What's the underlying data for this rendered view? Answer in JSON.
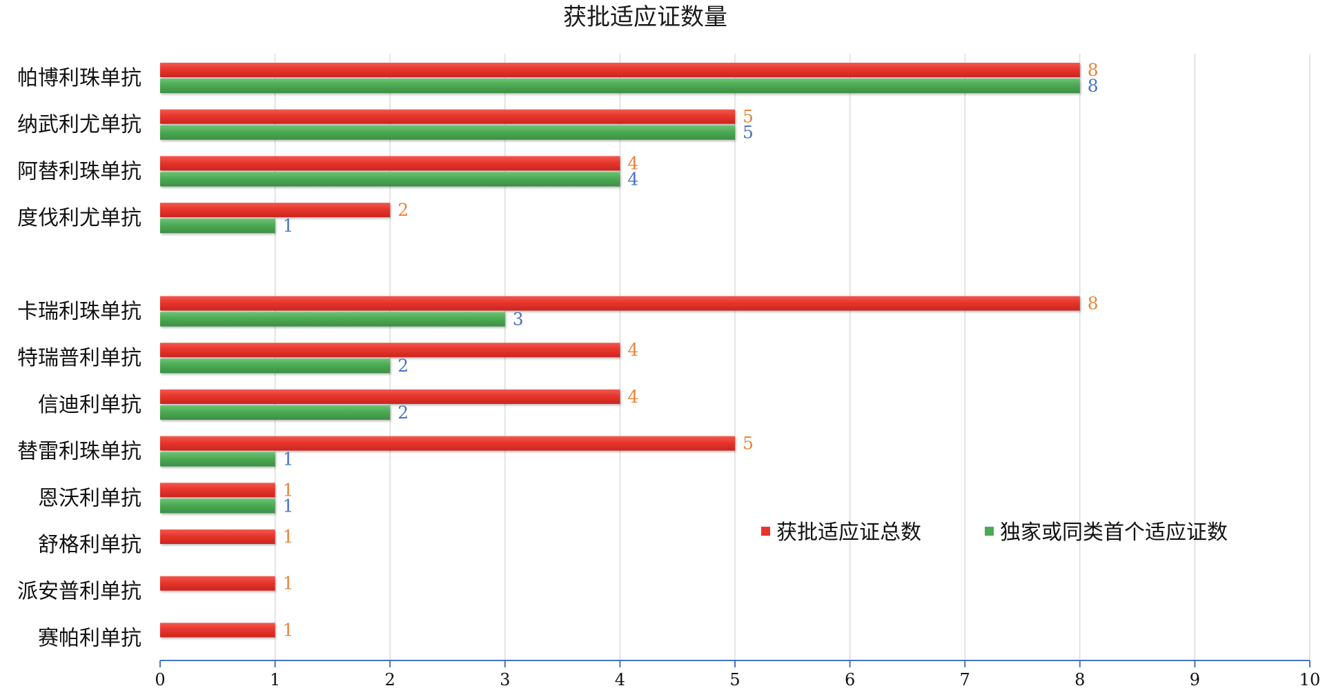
{
  "chart_data": {
    "type": "bar",
    "orientation": "horizontal",
    "title": "获批适应证数量",
    "categories": [
      "帕博利珠单抗",
      "纳武利尤单抗",
      "阿替利珠单抗",
      "度伐利尤单抗",
      "",
      "卡瑞利珠单抗",
      "特瑞普利单抗",
      "信迪利单抗",
      "替雷利珠单抗",
      "恩沃利单抗",
      "舒格利单抗",
      "派安普利单抗",
      "赛帕利单抗"
    ],
    "series": [
      {
        "name": "获批适应证总数",
        "color": "#e8352c",
        "label_color": "#e8843a",
        "values": [
          8,
          5,
          4,
          2,
          null,
          8,
          4,
          4,
          5,
          1,
          1,
          1,
          1
        ]
      },
      {
        "name": "独家或同类首个适应证数",
        "color": "#4caa54",
        "label_color": "#4a72c4",
        "values": [
          8,
          5,
          4,
          1,
          null,
          3,
          2,
          2,
          1,
          1,
          null,
          null,
          null
        ]
      }
    ],
    "xlim": [
      0,
      10
    ],
    "xticks": [
      0,
      1,
      2,
      3,
      4,
      5,
      6,
      7,
      8,
      9,
      10
    ],
    "grid": "vertical",
    "legend_position": "lower-right",
    "xlabel": "",
    "ylabel": ""
  }
}
